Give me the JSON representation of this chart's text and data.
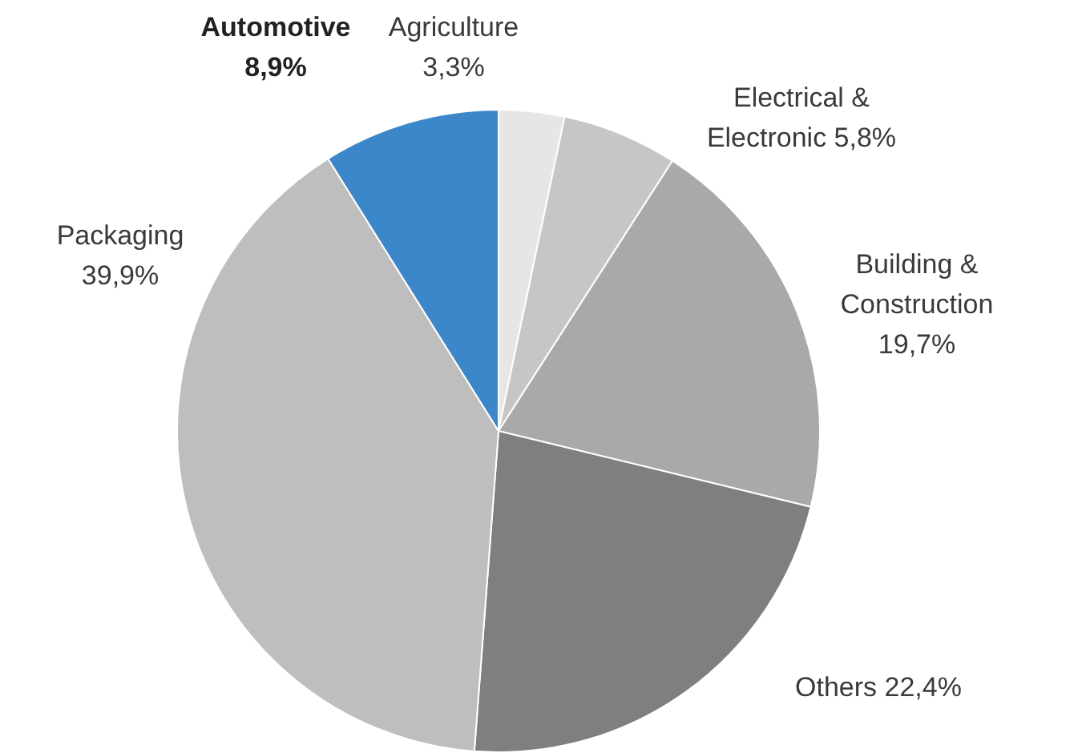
{
  "chart_data": {
    "type": "pie",
    "categories": [
      "Agriculture",
      "Electrical & Electronic",
      "Building & Construction",
      "Others",
      "Packaging",
      "Automotive"
    ],
    "values": [
      3.3,
      5.8,
      19.7,
      22.4,
      39.9,
      8.9
    ],
    "colors": [
      "#e6e6e6",
      "#c6c6c6",
      "#a9a9a9",
      "#7f7f7f",
      "#bebebe",
      "#3b87c9"
    ],
    "value_labels": [
      "3,3%",
      "5,8%",
      "19,7%",
      "22,4%",
      "39,9%",
      "8,9%"
    ],
    "legend": false
  }
}
